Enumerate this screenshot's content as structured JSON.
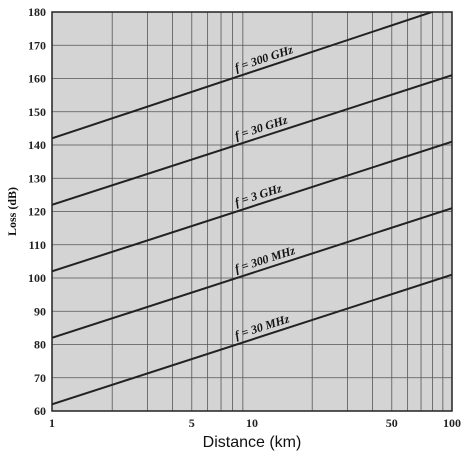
{
  "chart_data": {
    "type": "line",
    "title": "",
    "xlabel": "Distance (km)",
    "ylabel": "Loss (dB)",
    "x_scale": "log",
    "xlim": [
      1,
      100
    ],
    "ylim": [
      60,
      180
    ],
    "x_tick_labels": [
      "1",
      "5",
      "10",
      "50",
      "100"
    ],
    "x_tick_values": [
      1,
      5,
      10,
      50,
      100
    ],
    "y_tick_labels": [
      "60",
      "70",
      "80",
      "90",
      "100",
      "110",
      "120",
      "130",
      "140",
      "150",
      "160",
      "170",
      "180"
    ],
    "y_tick_values": [
      60,
      70,
      80,
      90,
      100,
      110,
      120,
      130,
      140,
      150,
      160,
      170,
      180
    ],
    "grid": true,
    "series": [
      {
        "name": "f = 300 GHz",
        "x": [
          1,
          100
        ],
        "y": [
          142,
          182
        ]
      },
      {
        "name": "f = 30 GHz",
        "x": [
          1,
          100
        ],
        "y": [
          122,
          161
        ]
      },
      {
        "name": "f = 3 GHz",
        "x": [
          1,
          100
        ],
        "y": [
          102,
          141
        ]
      },
      {
        "name": "f = 300 MHz",
        "x": [
          1,
          100
        ],
        "y": [
          82,
          121
        ]
      },
      {
        "name": "f = 30 MHz",
        "x": [
          1,
          100
        ],
        "y": [
          62,
          101
        ]
      }
    ],
    "label_at_x": [
      8.5,
      8.5,
      8.5,
      8.5,
      8.5
    ],
    "colors": {
      "plot_bg": "#d4d4d4",
      "grid": "#555555",
      "line": "#222222",
      "frame": "#222222"
    }
  }
}
